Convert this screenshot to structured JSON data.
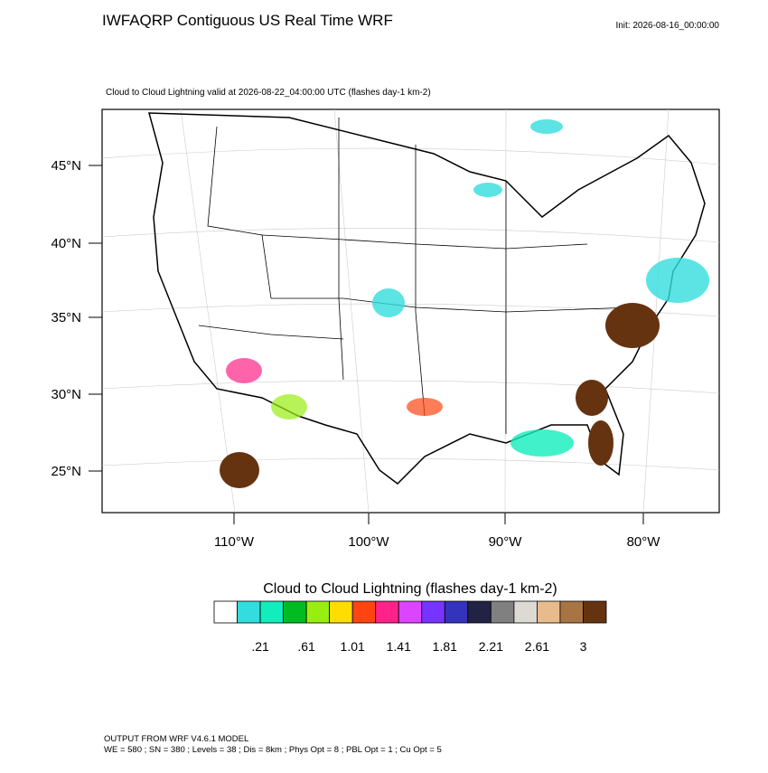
{
  "header": {
    "title": "IWFAQRP Contiguous US Real Time WRF",
    "init": "Init: 2026-08-16_00:00:00",
    "subtitle": "Cloud to Cloud Lightning valid at 2026-08-22_04:00:00 UTC   (flashes day-1 km-2)"
  },
  "map": {
    "lat_labels": [
      "45°N",
      "40°N",
      "35°N",
      "30°N",
      "25°N"
    ],
    "lon_labels": [
      "110°W",
      "100°W",
      "90°W",
      "80°W"
    ]
  },
  "colorbar": {
    "title": "Cloud to Cloud Lightning  (flashes day-1 km-2)",
    "colors": [
      "#ffffff",
      "#33dddd",
      "#11eebb",
      "#00bb22",
      "#99ee11",
      "#ffdd00",
      "#ff4411",
      "#ff2288",
      "#dd44ff",
      "#7733ff",
      "#3333bb",
      "#222244",
      "#808080",
      "#dddad4",
      "#e8bb8c",
      "#a97444",
      "#663311"
    ],
    "labels": [
      ".21",
      ".61",
      "1.01",
      "1.41",
      "1.81",
      "2.21",
      "2.61",
      "3"
    ]
  },
  "footer": {
    "line1": "OUTPUT FROM WRF V4.6.1 MODEL",
    "line2": "WE = 580 ; SN = 380 ; Levels = 38 ; Dis = 8km ; Phys Opt = 8 ; PBL Opt = 1 ; Cu Opt = 5"
  }
}
